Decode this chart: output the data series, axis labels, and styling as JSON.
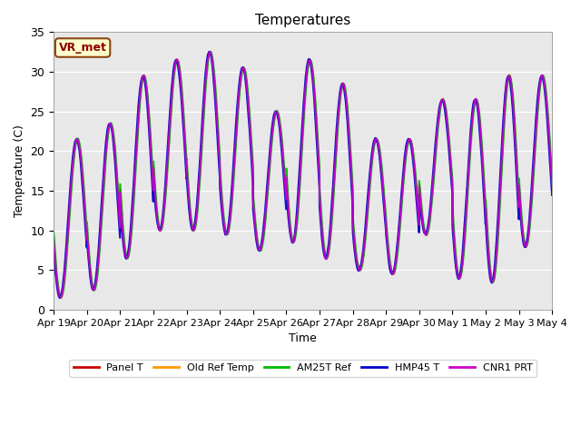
{
  "title": "Temperatures",
  "xlabel": "Time",
  "ylabel": "Temperature (C)",
  "ylim": [
    0,
    35
  ],
  "xlim": [
    0,
    15
  ],
  "site_label": "VR_met",
  "x_tick_labels": [
    "Apr 19",
    "Apr 20",
    "Apr 21",
    "Apr 22",
    "Apr 23",
    "Apr 24",
    "Apr 25",
    "Apr 26",
    "Apr 27",
    "Apr 28",
    "Apr 29",
    "Apr 30",
    "May 1",
    "May 2",
    "May 3",
    "May 4"
  ],
  "yticks": [
    0,
    5,
    10,
    15,
    20,
    25,
    30,
    35
  ],
  "series": [
    {
      "label": "Panel T",
      "color": "#cc0000",
      "lw": 1.4,
      "phase": 0.0,
      "noise": 0.25,
      "seed": 1
    },
    {
      "label": "Old Ref Temp",
      "color": "#ff9900",
      "lw": 1.4,
      "phase": 0.01,
      "noise": 0.3,
      "seed": 2
    },
    {
      "label": "AM25T Ref",
      "color": "#00bb00",
      "lw": 1.6,
      "phase": -0.01,
      "noise": 0.2,
      "seed": 3
    },
    {
      "label": "HMP45 T",
      "color": "#0000cc",
      "lw": 1.6,
      "phase": 0.025,
      "noise": 0.35,
      "seed": 4
    },
    {
      "label": "CNR1 PRT",
      "color": "#cc00cc",
      "lw": 1.4,
      "phase": 0.005,
      "noise": 0.25,
      "seed": 5
    }
  ],
  "day_min": [
    1.5,
    2.5,
    6.5,
    10.0,
    10.0,
    9.5,
    7.5,
    8.5,
    6.5,
    5.0,
    4.5,
    9.5,
    4.0,
    3.5,
    8.0
  ],
  "day_max": [
    21.5,
    23.5,
    29.5,
    31.5,
    32.5,
    30.5,
    25.0,
    31.5,
    28.5,
    21.5,
    21.5,
    26.5,
    26.5,
    29.5,
    29.5
  ],
  "n_days": 15,
  "ppd": 288,
  "bg_color": "#e8e8e8",
  "fig_bg": "#ffffff",
  "legend_ncol": 5,
  "legend_fontsize": 8
}
